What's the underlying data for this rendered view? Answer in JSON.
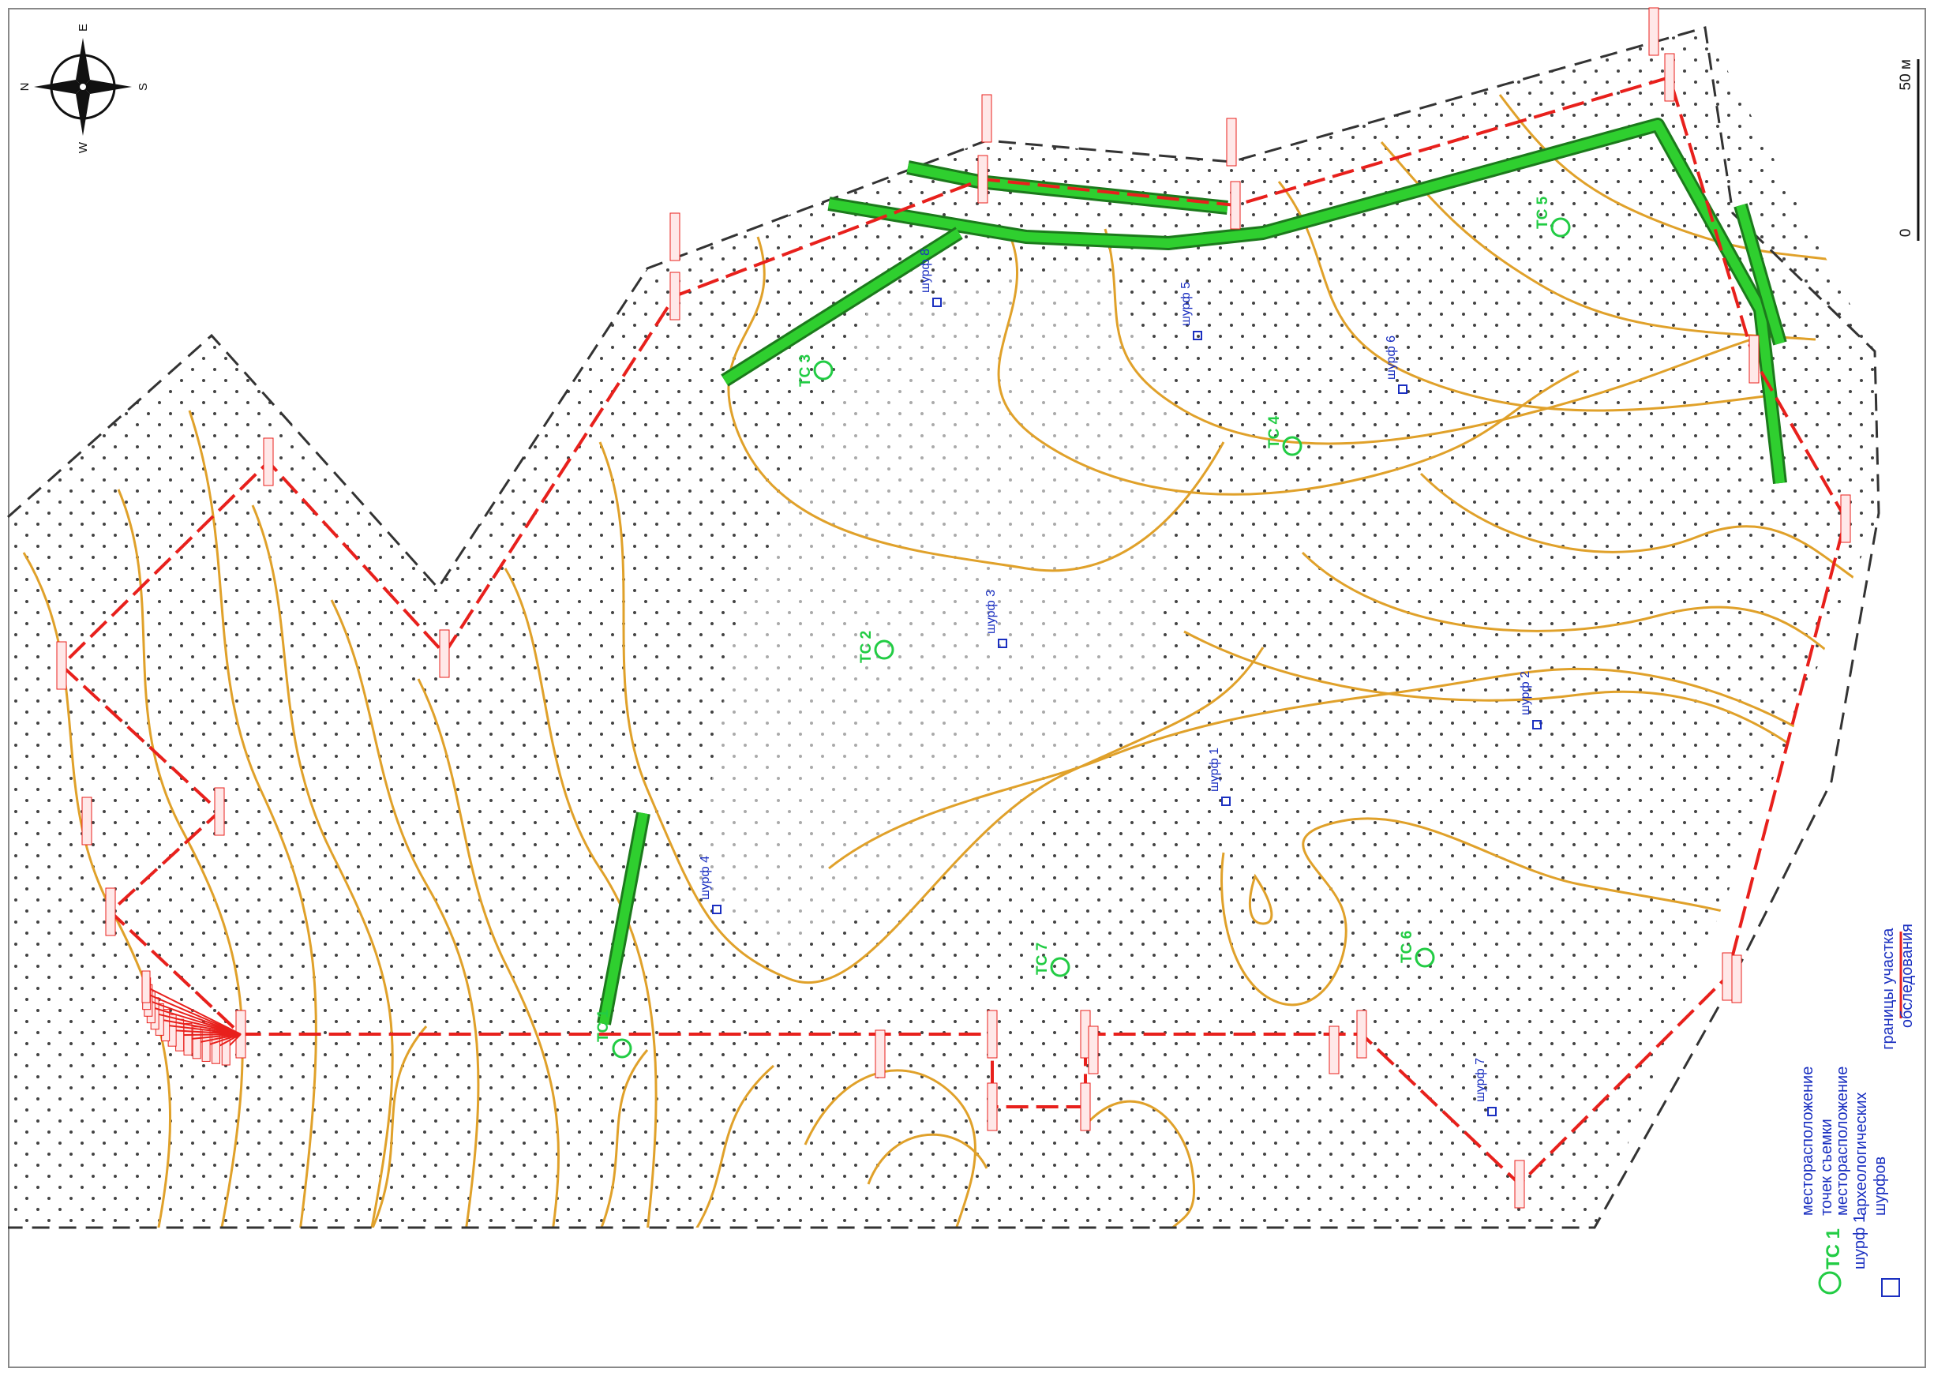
{
  "scale": {
    "zero": "0",
    "fifty": "50 м"
  },
  "compass": {
    "n": "N",
    "e": "E",
    "s": "S",
    "w": "W"
  },
  "sites": [
    {
      "label": "ТС 1"
    },
    {
      "label": "ТС 2"
    },
    {
      "label": "ТС 3"
    },
    {
      "label": "ТС 4"
    },
    {
      "label": "ТС 5"
    },
    {
      "label": "ТС 6"
    },
    {
      "label": "ТС 7"
    }
  ],
  "pits": [
    {
      "label": "шурф 1"
    },
    {
      "label": "шурф 2"
    },
    {
      "label": "шурф 3"
    },
    {
      "label": "шурф 4"
    },
    {
      "label": "шурф 5"
    },
    {
      "label": "шурф 6"
    },
    {
      "label": "шурф 7"
    },
    {
      "label": "шурф 8"
    }
  ],
  "legend": {
    "boundary": "границы участка обследования",
    "ts_symbol": "ТС 1",
    "ts_desc": "месторасположение точек съемки",
    "pit_symbol": "шурф 1",
    "pit_desc": "месторасположение археологических шурфов"
  },
  "colors": {
    "boundary": "#e8201c",
    "contour": "#e0a12a",
    "road": "#2fcf2f",
    "site": "#22cc44",
    "pit": "#1a2fc0",
    "outer": "#333333"
  }
}
